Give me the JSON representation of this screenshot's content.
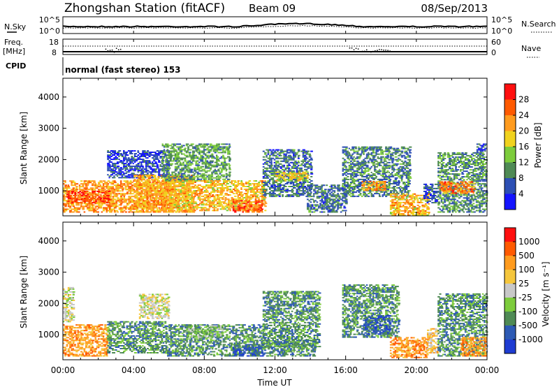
{
  "header": {
    "station": "Zhongshan Station (fitACF)",
    "beam": "Beam 09",
    "date": "08/Sep/2013"
  },
  "noise_panel": {
    "left_label": "N.Sky",
    "right_label": "N.Search",
    "tick_high": "10^5",
    "tick_low": "10^0"
  },
  "freq_panel": {
    "left_label_line1": "Freq.",
    "left_label_line2": "[MHz]",
    "left_tick_high": "18",
    "left_tick_low": "8",
    "right_label": "Nave",
    "right_tick_high": "60",
    "right_tick_low": "0"
  },
  "cpid": {
    "label": "CPID",
    "value": "normal (fast stereo) 153"
  },
  "colors": {
    "power_scale": [
      "#1414ff",
      "#2d4fb4",
      "#4f8a55",
      "#7dcc3c",
      "#f0d21e",
      "#ff9b1e",
      "#ff5a00",
      "#ff0f0f"
    ],
    "velocity_scale": [
      "#ff0f0f",
      "#ff5a00",
      "#ff9b1e",
      "#f5c63c",
      "#c8c8c8",
      "#7dcc3c",
      "#4f8a55",
      "#2d5ab4",
      "#1e3cd2"
    ]
  },
  "chart_data": [
    {
      "type": "heatmap",
      "name": "power",
      "ylabel": "Slant Range [km]",
      "yticks": [
        "1000",
        "2000",
        "3000",
        "4000"
      ],
      "ylim": [
        200,
        4600
      ],
      "xlim_hours": [
        0,
        24
      ],
      "colorbar_label": "Power [dB]",
      "colorbar_ticks": [
        "4",
        "8",
        "12",
        "16",
        "20",
        "24",
        "28"
      ],
      "colorbar_range": [
        0,
        32
      ],
      "scatter_regions": [
        {
          "t0": 0.0,
          "t1": 6.2,
          "r0": 300,
          "r1": 1300,
          "level": 22
        },
        {
          "t0": 0.2,
          "t1": 2.6,
          "r0": 600,
          "r1": 1000,
          "level": 27
        },
        {
          "t0": 2.5,
          "t1": 6.0,
          "r0": 1400,
          "r1": 2300,
          "level": 5
        },
        {
          "t0": 4.0,
          "t1": 7.4,
          "r0": 300,
          "r1": 1500,
          "level": 21
        },
        {
          "t0": 5.6,
          "t1": 9.4,
          "r0": 1300,
          "r1": 2500,
          "level": 11
        },
        {
          "t0": 6.0,
          "t1": 11.4,
          "r0": 350,
          "r1": 1300,
          "level": 20
        },
        {
          "t0": 9.6,
          "t1": 11.3,
          "r0": 300,
          "r1": 700,
          "level": 26
        },
        {
          "t0": 11.3,
          "t1": 14.0,
          "r0": 800,
          "r1": 2300,
          "level": 8
        },
        {
          "t0": 12.0,
          "t1": 13.8,
          "r0": 1300,
          "r1": 1600,
          "level": 18
        },
        {
          "t0": 13.8,
          "t1": 16.0,
          "r0": 300,
          "r1": 1200,
          "level": 8
        },
        {
          "t0": 15.8,
          "t1": 19.6,
          "r0": 800,
          "r1": 2400,
          "level": 9
        },
        {
          "t0": 16.9,
          "t1": 18.2,
          "r0": 1000,
          "r1": 1300,
          "level": 22
        },
        {
          "t0": 18.5,
          "t1": 20.7,
          "r0": 200,
          "r1": 900,
          "level": 20
        },
        {
          "t0": 20.4,
          "t1": 21.2,
          "r0": 600,
          "r1": 1200,
          "level": 6
        },
        {
          "t0": 21.2,
          "t1": 23.9,
          "r0": 300,
          "r1": 2200,
          "level": 10
        },
        {
          "t0": 21.3,
          "t1": 23.2,
          "r0": 900,
          "r1": 1300,
          "level": 24
        },
        {
          "t0": 23.4,
          "t1": 23.9,
          "r0": 2200,
          "r1": 2500,
          "level": 5
        }
      ]
    },
    {
      "type": "heatmap",
      "name": "velocity",
      "ylabel": "Slant Range [km]",
      "yticks": [
        "1000",
        "2000",
        "3000",
        "4000"
      ],
      "ylim": [
        200,
        4600
      ],
      "xlim_hours": [
        0,
        24
      ],
      "colorbar_label": "Velocity [m s⁻¹]",
      "colorbar_ticks": [
        "1000",
        "500",
        "100",
        "25",
        "-25",
        "-100",
        "-500",
        "-1000"
      ],
      "scatter_regions": [
        {
          "t0": 0.0,
          "t1": 2.5,
          "r0": 300,
          "r1": 1300,
          "level": 6
        },
        {
          "t0": 0.0,
          "t1": 0.6,
          "r0": 1400,
          "r1": 2500,
          "level": 4
        },
        {
          "t0": 2.5,
          "t1": 5.8,
          "r0": 400,
          "r1": 1400,
          "level": 2
        },
        {
          "t0": 4.3,
          "t1": 6.0,
          "r0": 1500,
          "r1": 2300,
          "level": 4
        },
        {
          "t0": 5.8,
          "t1": 11.4,
          "r0": 300,
          "r1": 1300,
          "level": 2
        },
        {
          "t0": 7.0,
          "t1": 9.0,
          "r0": 900,
          "r1": 1300,
          "level": 3
        },
        {
          "t0": 9.6,
          "t1": 11.3,
          "r0": 300,
          "r1": 700,
          "level": 1
        },
        {
          "t0": 11.3,
          "t1": 14.5,
          "r0": 600,
          "r1": 2400,
          "level": 2
        },
        {
          "t0": 11.5,
          "t1": 14.2,
          "r0": 300,
          "r1": 800,
          "level": 2
        },
        {
          "t0": 15.8,
          "t1": 19.0,
          "r0": 900,
          "r1": 2600,
          "level": 2
        },
        {
          "t0": 17.0,
          "t1": 18.5,
          "r0": 1000,
          "r1": 1600,
          "level": 1
        },
        {
          "t0": 18.5,
          "t1": 20.6,
          "r0": 250,
          "r1": 900,
          "level": 6
        },
        {
          "t0": 20.6,
          "t1": 21.2,
          "r0": 400,
          "r1": 1200,
          "level": 5
        },
        {
          "t0": 21.2,
          "t1": 23.9,
          "r0": 300,
          "r1": 2300,
          "level": 2
        },
        {
          "t0": 22.5,
          "t1": 23.9,
          "r0": 300,
          "r1": 900,
          "level": 6
        }
      ]
    }
  ],
  "xaxis": {
    "ticks": [
      "00:00",
      "04:00",
      "08:00",
      "12:00",
      "16:00",
      "20:00",
      "00:00"
    ],
    "label": "Time UT"
  }
}
